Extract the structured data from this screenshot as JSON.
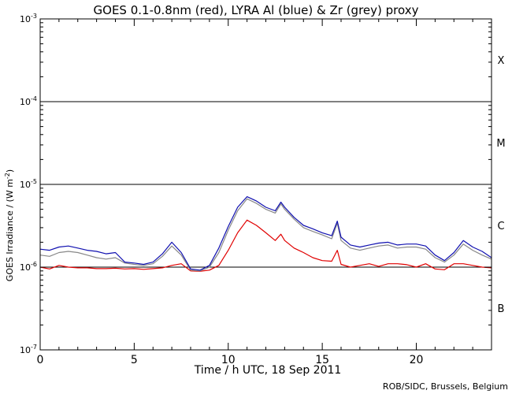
{
  "chart_data": {
    "type": "line",
    "title": "GOES 0.1-0.8nm (red), LYRA Al (blue) & Zr (grey) proxy",
    "xlabel": "Time / h UTC, 18 Sep 2011",
    "ylabel": "GOES Irradiance / (W m^-2)",
    "ylabel_parts": {
      "main": "GOES Irradiance / (W m",
      "exp": "-2",
      "close": ")"
    },
    "credit": "ROB/SIDC, Brussels, Belgium",
    "xlim": [
      0,
      24
    ],
    "ylim": [
      1e-07,
      0.001
    ],
    "yscale": "log",
    "x_ticks": [
      {
        "value": 0,
        "label": "0"
      },
      {
        "value": 5,
        "label": "5"
      },
      {
        "value": 10,
        "label": "10"
      },
      {
        "value": 15,
        "label": "15"
      },
      {
        "value": 20,
        "label": "20"
      }
    ],
    "y_ticks": [
      {
        "value": 0.001,
        "base": "10",
        "exp": "-3"
      },
      {
        "value": 0.0001,
        "base": "10",
        "exp": "-4"
      },
      {
        "value": 1e-05,
        "base": "10",
        "exp": "-5"
      },
      {
        "value": 1e-06,
        "base": "10",
        "exp": "-6"
      },
      {
        "value": 1e-07,
        "base": "10",
        "exp": "-7"
      }
    ],
    "reference_lines": [
      0.0001,
      1e-05,
      1e-06
    ],
    "flare_classes": [
      {
        "label": "X",
        "value": 0.00032
      },
      {
        "label": "M",
        "value": 3.2e-05
      },
      {
        "label": "C",
        "value": 3.2e-06
      },
      {
        "label": "B",
        "value": 3.2e-07
      }
    ],
    "series": [
      {
        "name": "GOES 0.1-0.8nm",
        "color": "#e00000",
        "x": [
          0,
          0.5,
          1,
          1.5,
          2,
          2.5,
          3,
          3.5,
          4,
          4.5,
          5,
          5.5,
          6,
          6.5,
          7,
          7.5,
          8,
          8.5,
          9,
          9.5,
          10,
          10.5,
          11,
          11.5,
          12,
          12.5,
          12.8,
          13,
          13.5,
          14,
          14.5,
          15,
          15.5,
          15.8,
          16,
          16.5,
          17,
          17.5,
          18,
          18.5,
          19,
          19.5,
          20,
          20.5,
          21,
          21.5,
          22,
          22.5,
          23,
          23.5,
          24
        ],
        "values": [
          1e-06,
          9.5e-07,
          1.05e-06,
          1e-06,
          9.8e-07,
          9.8e-07,
          9.6e-07,
          9.6e-07,
          9.7e-07,
          9.5e-07,
          9.6e-07,
          9.4e-07,
          9.6e-07,
          9.8e-07,
          1.05e-06,
          1.1e-06,
          9e-07,
          8.9e-07,
          9.2e-07,
          1.05e-06,
          1.6e-06,
          2.6e-06,
          3.7e-06,
          3.2e-06,
          2.6e-06,
          2.1e-06,
          2.5e-06,
          2.1e-06,
          1.7e-06,
          1.5e-06,
          1.3e-06,
          1.2e-06,
          1.18e-06,
          1.6e-06,
          1.08e-06,
          1e-06,
          1.05e-06,
          1.1e-06,
          1.02e-06,
          1.1e-06,
          1.1e-06,
          1.07e-06,
          1e-06,
          1.1e-06,
          9.5e-07,
          9.3e-07,
          1.1e-06,
          1.1e-06,
          1.05e-06,
          1e-06,
          9.8e-07
        ]
      },
      {
        "name": "LYRA Zr proxy",
        "color": "#888888",
        "x": [
          0,
          0.5,
          1,
          1.5,
          2,
          2.5,
          3,
          3.5,
          4,
          4.5,
          5,
          5.5,
          6,
          6.5,
          7,
          7.5,
          8,
          8.5,
          9,
          9.5,
          10,
          10.5,
          11,
          11.5,
          12,
          12.5,
          12.8,
          13,
          13.5,
          14,
          14.5,
          15,
          15.5,
          15.8,
          16,
          16.5,
          17,
          17.5,
          18,
          18.5,
          19,
          19.5,
          20,
          20.5,
          21,
          21.5,
          22,
          22.5,
          23,
          23.5,
          24
        ],
        "values": [
          1.4e-06,
          1.35e-06,
          1.5e-06,
          1.55e-06,
          1.5e-06,
          1.4e-06,
          1.3e-06,
          1.25e-06,
          1.3e-06,
          1.12e-06,
          1.08e-06,
          1.05e-06,
          1.1e-06,
          1.35e-06,
          1.8e-06,
          1.4e-06,
          9.2e-07,
          9e-07,
          1e-06,
          1.5e-06,
          2.8e-06,
          4.8e-06,
          6.7e-06,
          5.9e-06,
          5e-06,
          4.5e-06,
          5.8e-06,
          5e-06,
          3.8e-06,
          3e-06,
          2.7e-06,
          2.45e-06,
          2.2e-06,
          3.4e-06,
          2.1e-06,
          1.7e-06,
          1.6e-06,
          1.7e-06,
          1.8e-06,
          1.85e-06,
          1.7e-06,
          1.75e-06,
          1.75e-06,
          1.65e-06,
          1.3e-06,
          1.15e-06,
          1.4e-06,
          1.9e-06,
          1.6e-06,
          1.4e-06,
          1.25e-06
        ]
      },
      {
        "name": "LYRA Al proxy",
        "color": "#1010b0",
        "x": [
          0,
          0.5,
          1,
          1.5,
          2,
          2.5,
          3,
          3.5,
          4,
          4.5,
          5,
          5.5,
          6,
          6.5,
          7,
          7.5,
          8,
          8.5,
          9,
          9.5,
          10,
          10.5,
          11,
          11.5,
          12,
          12.5,
          12.8,
          13,
          13.5,
          14,
          14.5,
          15,
          15.5,
          15.8,
          16,
          16.5,
          17,
          17.5,
          18,
          18.5,
          19,
          19.5,
          20,
          20.5,
          21,
          21.5,
          22,
          22.5,
          23,
          23.5,
          24
        ],
        "values": [
          1.65e-06,
          1.6e-06,
          1.75e-06,
          1.8e-06,
          1.7e-06,
          1.6e-06,
          1.55e-06,
          1.45e-06,
          1.5e-06,
          1.15e-06,
          1.12e-06,
          1.08e-06,
          1.15e-06,
          1.45e-06,
          2e-06,
          1.5e-06,
          9.5e-07,
          9.2e-07,
          1.05e-06,
          1.7e-06,
          3.1e-06,
          5.3e-06,
          7.1e-06,
          6.3e-06,
          5.3e-06,
          4.8e-06,
          6.1e-06,
          5.3e-06,
          4e-06,
          3.2e-06,
          2.9e-06,
          2.6e-06,
          2.4e-06,
          3.6e-06,
          2.3e-06,
          1.85e-06,
          1.75e-06,
          1.85e-06,
          1.95e-06,
          2e-06,
          1.85e-06,
          1.9e-06,
          1.9e-06,
          1.8e-06,
          1.4e-06,
          1.2e-06,
          1.5e-06,
          2.1e-06,
          1.75e-06,
          1.55e-06,
          1.3e-06
        ]
      }
    ]
  }
}
